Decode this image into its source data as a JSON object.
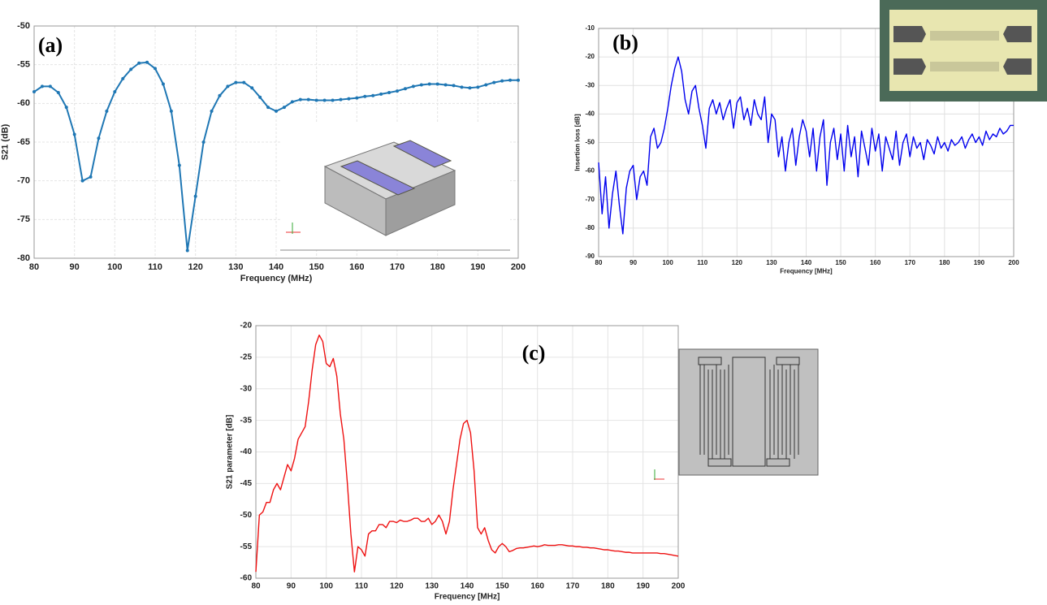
{
  "chart_data": [
    {
      "type": "line",
      "panel_label": "(a)",
      "x_label": "Frequency (MHz)",
      "y_label": "S21 (dB)",
      "markers": true,
      "grid": true,
      "xlim": [
        80,
        200
      ],
      "ylim": [
        -80,
        -50
      ],
      "xticks": [
        80,
        90,
        100,
        110,
        120,
        130,
        140,
        150,
        160,
        170,
        180,
        190,
        200
      ],
      "yticks": [
        -50,
        -55,
        -60,
        -65,
        -70,
        -75,
        -80
      ],
      "x": [
        80,
        82,
        84,
        86,
        88,
        90,
        92,
        94,
        96,
        98,
        100,
        102,
        104,
        106,
        108,
        110,
        112,
        114,
        116,
        118,
        120,
        122,
        124,
        126,
        128,
        130,
        132,
        134,
        136,
        138,
        140,
        142,
        144,
        146,
        148,
        150,
        152,
        154,
        156,
        158,
        160,
        162,
        164,
        166,
        168,
        170,
        172,
        174,
        176,
        178,
        180,
        182,
        184,
        186,
        188,
        190,
        192,
        194,
        196,
        198,
        200
      ],
      "series": [
        {
          "color": "#1f77b4",
          "values": [
            -58.5,
            -57.8,
            -57.8,
            -58.6,
            -60.5,
            -64,
            -70,
            -69.5,
            -64.5,
            -61,
            -58.5,
            -56.8,
            -55.6,
            -54.8,
            -54.7,
            -55.5,
            -57.5,
            -61,
            -68,
            -79,
            -72,
            -65,
            -61,
            -59,
            -57.8,
            -57.3,
            -57.3,
            -58,
            -59.2,
            -60.5,
            -61,
            -60.5,
            -59.8,
            -59.5,
            -59.5,
            -59.6,
            -59.6,
            -59.6,
            -59.5,
            -59.4,
            -59.3,
            -59.1,
            -59,
            -58.8,
            -58.6,
            -58.4,
            -58.1,
            -57.8,
            -57.6,
            -57.5,
            -57.5,
            -57.6,
            -57.7,
            -57.9,
            -58,
            -57.9,
            -57.6,
            -57.3,
            -57.1,
            -57,
            -57
          ]
        }
      ]
    },
    {
      "type": "line",
      "panel_label": "(b)",
      "x_label": "Frequency [MHz]",
      "y_label": "Insertion loss [dB]",
      "markers": false,
      "grid": true,
      "xlim": [
        80,
        200
      ],
      "ylim": [
        -90,
        -10
      ],
      "xticks": [
        80,
        90,
        100,
        110,
        120,
        130,
        140,
        150,
        160,
        170,
        180,
        190,
        200
      ],
      "yticks": [
        -10,
        -20,
        -30,
        -40,
        -50,
        -60,
        -70,
        -80,
        -90
      ],
      "x": [
        80,
        81,
        82,
        83,
        84,
        85,
        86,
        87,
        88,
        89,
        90,
        91,
        92,
        93,
        94,
        95,
        96,
        97,
        98,
        99,
        100,
        101,
        102,
        103,
        104,
        105,
        106,
        107,
        108,
        109,
        110,
        111,
        112,
        113,
        114,
        115,
        116,
        117,
        118,
        119,
        120,
        121,
        122,
        123,
        124,
        125,
        126,
        127,
        128,
        129,
        130,
        131,
        132,
        133,
        134,
        135,
        136,
        137,
        138,
        139,
        140,
        141,
        142,
        143,
        144,
        145,
        146,
        147,
        148,
        149,
        150,
        151,
        152,
        153,
        154,
        155,
        156,
        157,
        158,
        159,
        160,
        161,
        162,
        163,
        164,
        165,
        166,
        167,
        168,
        169,
        170,
        171,
        172,
        173,
        174,
        175,
        176,
        177,
        178,
        179,
        180,
        181,
        182,
        183,
        184,
        185,
        186,
        187,
        188,
        189,
        190,
        191,
        192,
        193,
        194,
        195,
        196,
        197,
        198,
        199,
        200
      ],
      "series": [
        {
          "color": "#0000ee",
          "values": [
            -57,
            -75,
            -62,
            -80,
            -68,
            -60,
            -72,
            -82,
            -66,
            -60,
            -58,
            -70,
            -62,
            -60,
            -65,
            -48,
            -45,
            -52,
            -50,
            -45,
            -38,
            -30,
            -24,
            -20,
            -25,
            -35,
            -40,
            -32,
            -30,
            -38,
            -44,
            -52,
            -38,
            -35,
            -40,
            -36,
            -42,
            -38,
            -35,
            -45,
            -36,
            -34,
            -42,
            -38,
            -44,
            -35,
            -40,
            -42,
            -34,
            -50,
            -40,
            -42,
            -55,
            -48,
            -60,
            -50,
            -45,
            -58,
            -48,
            -42,
            -46,
            -55,
            -45,
            -60,
            -48,
            -42,
            -65,
            -50,
            -45,
            -56,
            -47,
            -60,
            -44,
            -55,
            -48,
            -62,
            -46,
            -52,
            -58,
            -45,
            -53,
            -47,
            -60,
            -48,
            -52,
            -56,
            -46,
            -58,
            -50,
            -47,
            -55,
            -48,
            -52,
            -50,
            -56,
            -49,
            -51,
            -54,
            -48,
            -52,
            -50,
            -53,
            -49,
            -51,
            -50,
            -48,
            -52,
            -49,
            -47,
            -50,
            -48,
            -51,
            -46,
            -49,
            -47,
            -48,
            -45,
            -47,
            -46,
            -44,
            -44
          ]
        }
      ]
    },
    {
      "type": "line",
      "panel_label": "(c)",
      "x_label": "Frequency [MHz]",
      "y_label": "S21 parameter [dB]",
      "markers": false,
      "grid": true,
      "xlim": [
        80,
        200
      ],
      "ylim": [
        -60,
        -20
      ],
      "xticks": [
        80,
        90,
        100,
        110,
        120,
        130,
        140,
        150,
        160,
        170,
        180,
        190,
        200
      ],
      "yticks": [
        -20,
        -25,
        -30,
        -35,
        -40,
        -45,
        -50,
        -55,
        -60
      ],
      "x": [
        80,
        81,
        82,
        83,
        84,
        85,
        86,
        87,
        88,
        89,
        90,
        91,
        92,
        93,
        94,
        95,
        96,
        97,
        98,
        99,
        100,
        101,
        102,
        103,
        104,
        105,
        106,
        107,
        108,
        109,
        110,
        111,
        112,
        113,
        114,
        115,
        116,
        117,
        118,
        119,
        120,
        121,
        122,
        123,
        124,
        125,
        126,
        127,
        128,
        129,
        130,
        131,
        132,
        133,
        134,
        135,
        136,
        137,
        138,
        139,
        140,
        141,
        142,
        143,
        144,
        145,
        146,
        147,
        148,
        149,
        150,
        151,
        152,
        153,
        154,
        155,
        156,
        157,
        158,
        159,
        160,
        161,
        162,
        163,
        164,
        165,
        166,
        167,
        168,
        169,
        170,
        171,
        172,
        173,
        174,
        175,
        176,
        177,
        178,
        179,
        180,
        181,
        182,
        183,
        184,
        185,
        186,
        187,
        188,
        189,
        190,
        191,
        192,
        193,
        194,
        195,
        196,
        197,
        198,
        199,
        200
      ],
      "series": [
        {
          "color": "#ee1111",
          "values": [
            -59,
            -50,
            -49.5,
            -48,
            -48,
            -46,
            -45,
            -46,
            -44,
            -42,
            -43,
            -41,
            -38,
            -37,
            -36,
            -32,
            -27,
            -23,
            -21.5,
            -22.5,
            -26,
            -26.5,
            -25.2,
            -28,
            -34,
            -38,
            -45,
            -53,
            -59,
            -55,
            -55.5,
            -56.5,
            -53,
            -52.5,
            -52.5,
            -51.5,
            -51.5,
            -52,
            -51,
            -51,
            -51.2,
            -50.8,
            -51,
            -51,
            -50.8,
            -50.5,
            -50.5,
            -51,
            -51,
            -50.5,
            -51.5,
            -51,
            -50,
            -51,
            -53,
            -51,
            -46,
            -42,
            -38,
            -35.5,
            -35,
            -37,
            -43,
            -52,
            -53,
            -52,
            -54,
            -55.5,
            -56,
            -55,
            -54.5,
            -55,
            -55.8,
            -55.6,
            -55.3,
            -55.2,
            -55.2,
            -55.1,
            -55,
            -54.9,
            -55,
            -54.9,
            -54.7,
            -54.8,
            -54.8,
            -54.8,
            -54.7,
            -54.7,
            -54.8,
            -54.9,
            -54.9,
            -55,
            -55,
            -55.1,
            -55.1,
            -55.2,
            -55.2,
            -55.3,
            -55.4,
            -55.5,
            -55.5,
            -55.6,
            -55.7,
            -55.7,
            -55.8,
            -55.9,
            -55.9,
            -56,
            -56,
            -56,
            -56,
            -56,
            -56,
            -56,
            -56,
            -56.1,
            -56.1,
            -56.2,
            -56.3,
            -56.4,
            -56.5
          ]
        }
      ]
    }
  ]
}
